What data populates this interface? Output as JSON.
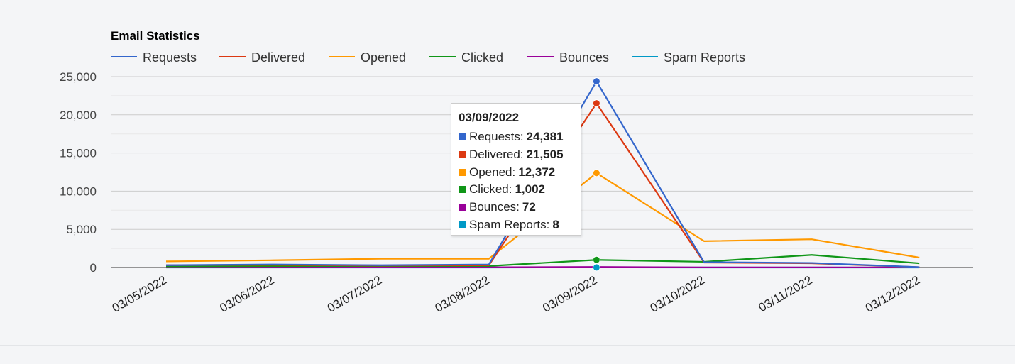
{
  "chart_data": {
    "type": "line",
    "title": "Email Statistics",
    "xlabel": "",
    "ylabel": "",
    "ylim": [
      0,
      25000
    ],
    "yticks": [
      0,
      5000,
      10000,
      15000,
      20000,
      25000
    ],
    "ytick_labels": [
      "0",
      "5,000",
      "10,000",
      "15,000",
      "20,000",
      "25,000"
    ],
    "categories": [
      "03/05/2022",
      "03/06/2022",
      "03/07/2022",
      "03/08/2022",
      "03/09/2022",
      "03/10/2022",
      "03/11/2022",
      "03/12/2022"
    ],
    "series": [
      {
        "name": "Requests",
        "color": "#3366cc",
        "values": [
          300,
          400,
          300,
          400,
          24381,
          700,
          600,
          50
        ]
      },
      {
        "name": "Delivered",
        "color": "#dc3912",
        "values": [
          300,
          350,
          250,
          300,
          21505,
          650,
          550,
          40
        ]
      },
      {
        "name": "Opened",
        "color": "#ff9900",
        "values": [
          800,
          950,
          1150,
          1150,
          12372,
          3450,
          3700,
          1300
        ]
      },
      {
        "name": "Clicked",
        "color": "#109618",
        "values": [
          150,
          180,
          200,
          200,
          1002,
          750,
          1650,
          550
        ]
      },
      {
        "name": "Bounces",
        "color": "#990099",
        "values": [
          20,
          25,
          20,
          30,
          72,
          15,
          15,
          5
        ]
      },
      {
        "name": "Spam Reports",
        "color": "#0099c6",
        "values": [
          2,
          3,
          2,
          3,
          8,
          2,
          2,
          1
        ]
      }
    ],
    "legend_position": "top-left",
    "grid": true,
    "highlighted_category": "03/09/2022"
  },
  "tooltip": {
    "date": "03/09/2022",
    "rows": [
      {
        "label": "Requests:",
        "value": "24,381",
        "color": "#3366cc"
      },
      {
        "label": "Delivered:",
        "value": "21,505",
        "color": "#dc3912"
      },
      {
        "label": "Opened:",
        "value": "12,372",
        "color": "#ff9900"
      },
      {
        "label": "Clicked:",
        "value": "1,002",
        "color": "#109618"
      },
      {
        "label": "Bounces:",
        "value": "72",
        "color": "#990099"
      },
      {
        "label": "Spam Reports:",
        "value": "8",
        "color": "#0099c6"
      }
    ]
  }
}
